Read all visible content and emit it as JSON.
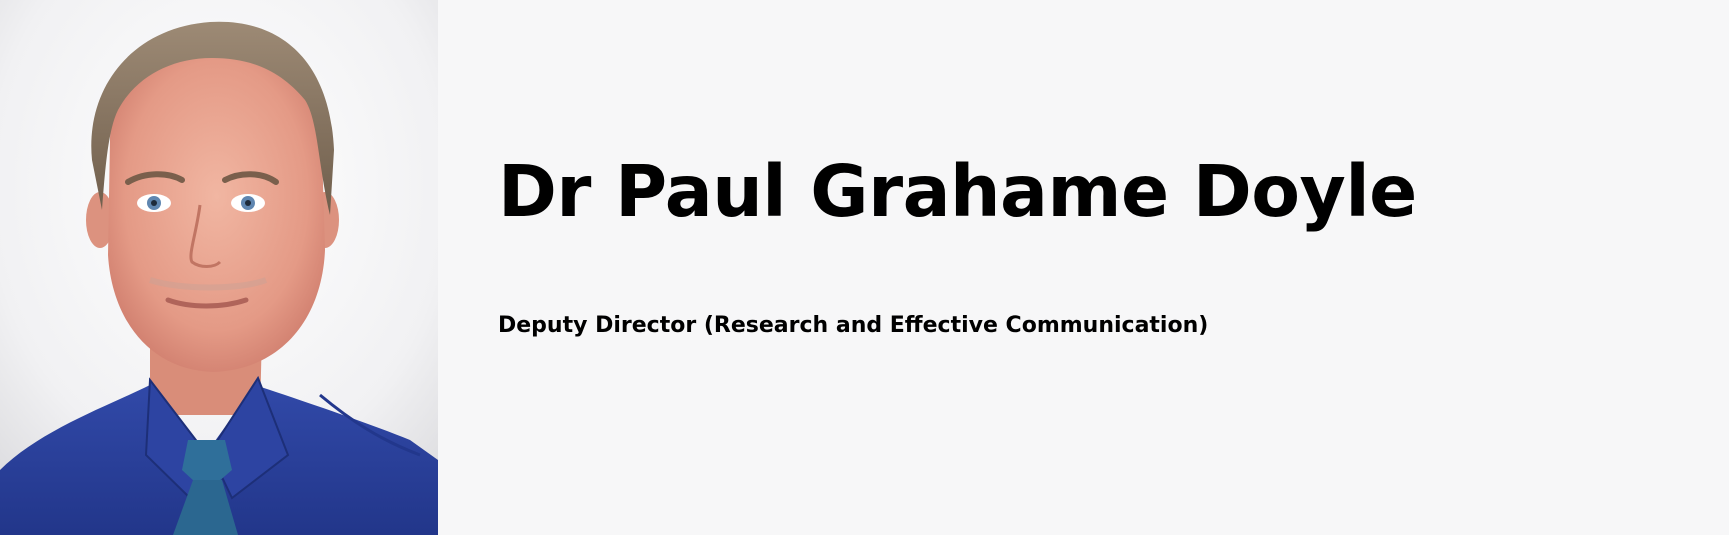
{
  "profile": {
    "name": "Dr Paul Grahame Doyle",
    "role": "Deputy Director (Research and Effective Communication)",
    "photo_alt": "Portrait photo"
  },
  "colors": {
    "page_background": "#f7f7f8",
    "text": "#000000",
    "shirt": "#2b43a0",
    "tie": "#2f6f9a"
  }
}
